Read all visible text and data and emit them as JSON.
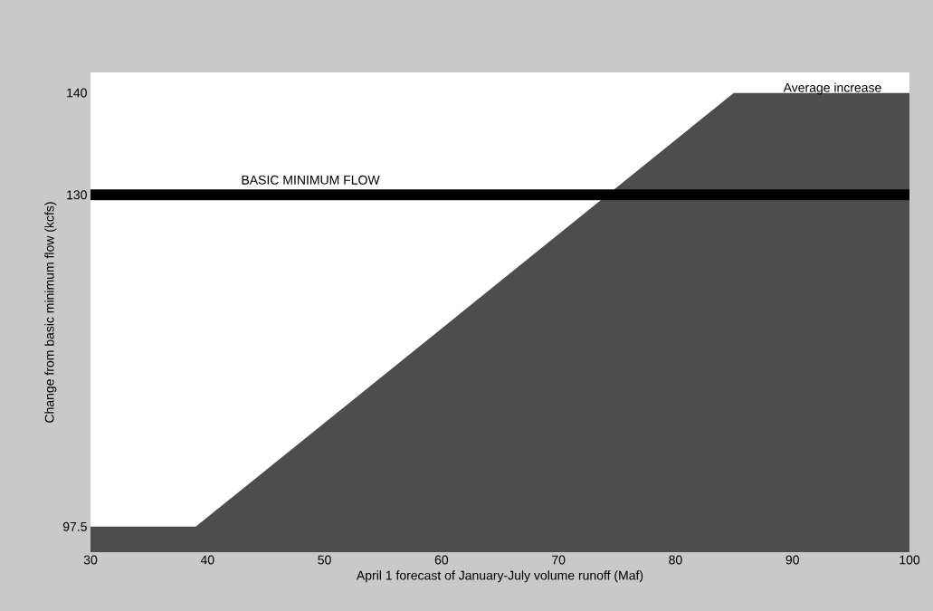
{
  "chart_data": {
    "type": "area",
    "xlabel": "April 1 forecast of January-July volume runoff (Maf)",
    "ylabel": "Change from basic minimum flow (kcfs)",
    "x": [
      30,
      39,
      85,
      100
    ],
    "values": [
      97.5,
      97.5,
      140,
      140
    ],
    "color": "#4d4d4d",
    "xlim": [
      30,
      100
    ],
    "xticks": [
      30,
      40,
      50,
      60,
      70,
      80,
      90,
      100
    ],
    "ylim": [
      95,
      142
    ],
    "yticks": [
      97.5,
      130,
      140
    ],
    "ref_lines": [
      {
        "axis": "y",
        "value": 130,
        "label": "BASIC MINIMUM FLOW",
        "color": "#000000"
      }
    ],
    "annotations": [
      "Average increase"
    ],
    "grid": false
  }
}
